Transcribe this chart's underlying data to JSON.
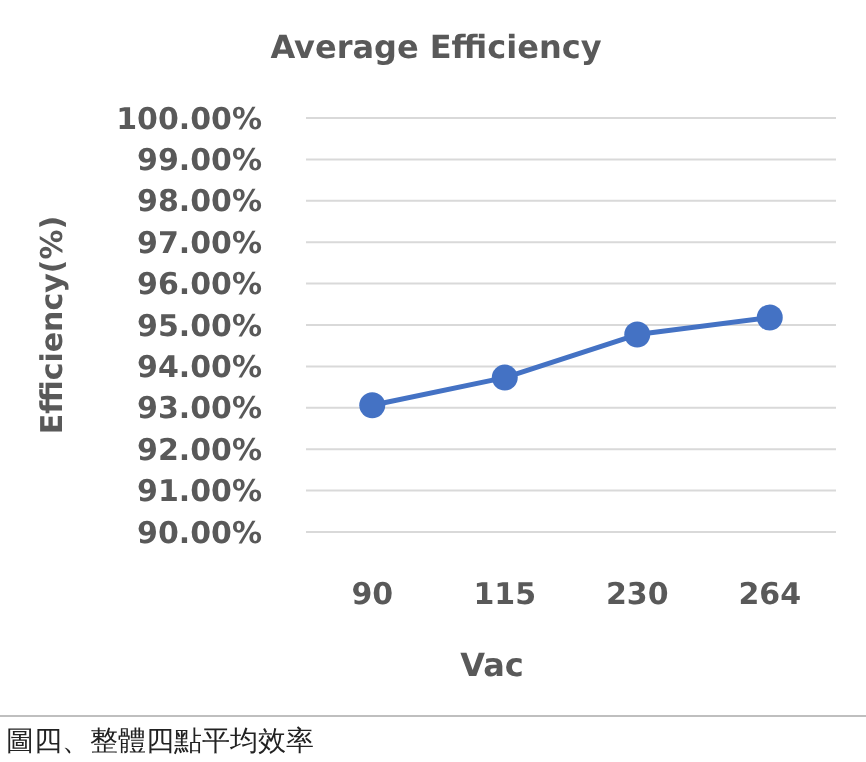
{
  "chart_data": {
    "type": "line",
    "title": "Average Efficiency",
    "xlabel": "Vac",
    "ylabel": "Efficiency(%)",
    "categories": [
      "90",
      "115",
      "230",
      "264"
    ],
    "series": [
      {
        "color": "#4472c4",
        "values": [
          93.06,
          93.73,
          94.77,
          95.18
        ]
      }
    ],
    "ylim": [
      90,
      100
    ],
    "yticks": [
      {
        "value": 90,
        "label": "90.00%"
      },
      {
        "value": 91,
        "label": "91.00%"
      },
      {
        "value": 92,
        "label": "92.00%"
      },
      {
        "value": 93,
        "label": "93.00%"
      },
      {
        "value": 94,
        "label": "94.00%"
      },
      {
        "value": 95,
        "label": "95.00%"
      },
      {
        "value": 96,
        "label": "96.00%"
      },
      {
        "value": 97,
        "label": "97.00%"
      },
      {
        "value": 98,
        "label": "98.00%"
      },
      {
        "value": 99,
        "label": "99.00%"
      },
      {
        "value": 100,
        "label": "100.00%"
      }
    ],
    "grid": "y",
    "marker": "circle",
    "line_style": "solid",
    "annotations": [
      "圖四、整體四點平均效率"
    ]
  }
}
